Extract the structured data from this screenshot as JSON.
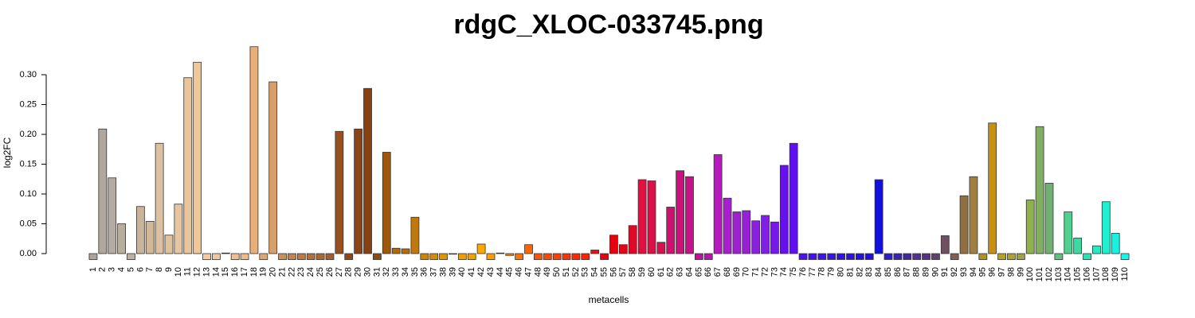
{
  "chart_data": {
    "type": "bar",
    "title": "rdgC_XLOC-033745.png",
    "x_label": "metacells",
    "y_label": "log2FC",
    "categories": [
      "1",
      "2",
      "3",
      "4",
      "5",
      "6",
      "7",
      "8",
      "9",
      "10",
      "11",
      "12",
      "13",
      "14",
      "15",
      "16",
      "17",
      "18",
      "19",
      "20",
      "21",
      "22",
      "23",
      "24",
      "25",
      "26",
      "27",
      "28",
      "29",
      "30",
      "31",
      "32",
      "33",
      "34",
      "35",
      "36",
      "37",
      "38",
      "39",
      "40",
      "41",
      "42",
      "43",
      "44",
      "45",
      "46",
      "47",
      "48",
      "49",
      "50",
      "51",
      "52",
      "53",
      "54",
      "55",
      "56",
      "57",
      "58",
      "59",
      "60",
      "61",
      "62",
      "63",
      "64",
      "65",
      "66",
      "67",
      "68",
      "69",
      "70",
      "71",
      "72",
      "73",
      "74",
      "75",
      "76",
      "77",
      "78",
      "79",
      "80",
      "81",
      "82",
      "83",
      "84",
      "85",
      "86",
      "87",
      "88",
      "89",
      "90",
      "91",
      "92",
      "93",
      "94",
      "95",
      "96",
      "97",
      "98",
      "99",
      "100",
      "101",
      "102",
      "103",
      "104",
      "105",
      "106",
      "107",
      "108",
      "109",
      "110"
    ],
    "values": [
      -0.01,
      0.209,
      0.127,
      0.05,
      -0.01,
      0.079,
      0.054,
      0.185,
      0.031,
      0.083,
      0.295,
      0.321,
      -0.01,
      -0.01,
      0.001,
      -0.01,
      -0.01,
      0.347,
      -0.01,
      0.288,
      -0.01,
      -0.01,
      -0.01,
      -0.01,
      -0.01,
      -0.01,
      0.205,
      -0.01,
      0.209,
      0.277,
      -0.01,
      0.17,
      0.009,
      0.008,
      0.061,
      -0.01,
      -0.01,
      -0.01,
      -0.001,
      -0.01,
      -0.01,
      0.016,
      -0.01,
      0.001,
      -0.003,
      -0.01,
      0.015,
      -0.01,
      -0.01,
      -0.01,
      -0.01,
      -0.01,
      -0.01,
      0.006,
      -0.01,
      0.031,
      0.015,
      0.047,
      0.124,
      0.122,
      0.019,
      0.078,
      0.139,
      0.129,
      -0.01,
      -0.01,
      0.166,
      0.093,
      0.07,
      0.072,
      0.055,
      0.064,
      0.053,
      0.148,
      0.185,
      -0.01,
      -0.01,
      -0.01,
      -0.01,
      -0.01,
      -0.01,
      -0.01,
      -0.01,
      0.124,
      -0.01,
      -0.01,
      -0.01,
      -0.01,
      -0.01,
      -0.01,
      0.03,
      -0.01,
      0.097,
      0.129,
      -0.01,
      0.219,
      -0.01,
      -0.01,
      -0.01,
      0.09,
      0.213,
      0.118,
      -0.01,
      0.07,
      0.026,
      -0.01,
      0.013,
      0.087,
      0.034,
      -0.01
    ],
    "colors": [
      "#aca49a",
      "#b0a89e",
      "#b4aca2",
      "#b8ae9e",
      "#bcb0a0",
      "#c8b49c",
      "#d0b898",
      "#dcc0a0",
      "#e0c29e",
      "#e6c6a0",
      "#eac59a",
      "#f0c898",
      "#f4caa2",
      "#f4c69c",
      "#f2c294",
      "#f0be90",
      "#eeba8c",
      "#e8b078",
      "#e0a870",
      "#d8a068",
      "#c8905c",
      "#c08454",
      "#b87a48",
      "#b0703c",
      "#a86834",
      "#a06030",
      "#985020",
      "#904818",
      "#8c4414",
      "#884010",
      "#8a4a10",
      "#a05808",
      "#b06808",
      "#b86c08",
      "#c07808",
      "#cc8408",
      "#d48c08",
      "#dc9408",
      "#e49a04",
      "#ec9e02",
      "#f0a000",
      "#ffa800",
      "#ff9c00",
      "#ff9000",
      "#ff8000",
      "#ff7000",
      "#ff6600",
      "#ff5500",
      "#ff4a00",
      "#ff4000",
      "#ff3400",
      "#ff2800",
      "#ff2200",
      "#f01010",
      "#e80010",
      "#e8000e",
      "#e40418",
      "#e00828",
      "#e01040",
      "#dc1048",
      "#d81050",
      "#d01070",
      "#cc107c",
      "#c81088",
      "#c010a0",
      "#bc12b0",
      "#b818c0",
      "#a820cc",
      "#a020d0",
      "#9820d6",
      "#8a20e0",
      "#8020e4",
      "#7618e8",
      "#6610ee",
      "#6010f0",
      "#4a10ee",
      "#4410ec",
      "#3e10ea",
      "#3810e8",
      "#3210e8",
      "#2c10e6",
      "#2610e6",
      "#2010e8",
      "#1010e0",
      "#3020c0",
      "#3826b0",
      "#4028a0",
      "#503090",
      "#583480",
      "#604070",
      "#705060",
      "#806050",
      "#907040",
      "#a08040",
      "#b09020",
      "#c89010",
      "#b8a020",
      "#b0a030",
      "#a0a040",
      "#90b050",
      "#80b060",
      "#70b070",
      "#60c080",
      "#50d090",
      "#40d8a0",
      "#30e0b0",
      "#28e8c0",
      "#20f0d0",
      "#18f0e0",
      "#10f8f0"
    ],
    "ylim": [
      -0.01,
      0.35
    ],
    "yticks": [
      {
        "value": 0,
        "label": "0.00"
      },
      {
        "value": 0.05,
        "label": "0.05"
      },
      {
        "value": 0.1,
        "label": "0.10"
      },
      {
        "value": 0.15,
        "label": "0.15"
      },
      {
        "value": 0.2,
        "label": "0.20"
      },
      {
        "value": 0.25,
        "label": "0.25"
      },
      {
        "value": 0.3,
        "label": "0.30"
      }
    ]
  }
}
